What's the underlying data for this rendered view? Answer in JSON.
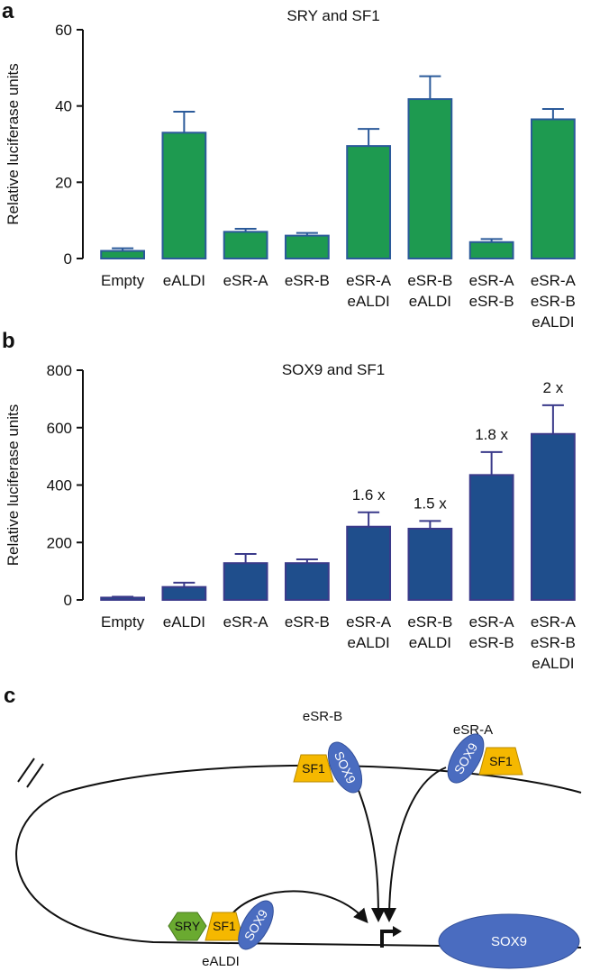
{
  "chart_data": [
    {
      "type": "bar",
      "panel": "a",
      "title": "SRY and SF1",
      "ylabel": "Relative luciferase units",
      "categories": [
        "Empty",
        "eALDI",
        "eSR-A",
        "eSR-B",
        "eSR-A\neALDI",
        "eSR-B\neALDI",
        "eSR-A\neSR-B",
        "eSR-A\neSR-B\neALDI"
      ],
      "values": [
        2,
        33,
        7,
        6,
        29.5,
        41.8,
        4.3,
        36.5
      ],
      "errors": [
        0.7,
        5.5,
        0.8,
        0.7,
        4.5,
        6,
        0.8,
        2.7
      ],
      "color": "#1e9a50",
      "edge_color": "#2b5a9a",
      "error_color": "#2b5a9a",
      "ylim": [
        0,
        60
      ],
      "yticks": [
        0,
        20,
        40,
        60
      ]
    },
    {
      "type": "bar",
      "panel": "b",
      "title": "SOX9 and SF1",
      "ylabel": "Relative luciferase units",
      "categories": [
        "Empty",
        "eALDI",
        "eSR-A",
        "eSR-B",
        "eSR-A\neALDI",
        "eSR-B\neALDI",
        "eSR-A\neSR-B",
        "eSR-A\neSR-B\neALDI"
      ],
      "values": [
        8,
        45,
        128,
        128,
        255,
        248,
        435,
        578
      ],
      "errors": [
        3,
        15,
        32,
        13,
        50,
        27,
        80,
        100
      ],
      "annotations": [
        null,
        null,
        null,
        null,
        "1.6 x",
        "1.5 x",
        "1.8 x",
        "2 x"
      ],
      "color": "#1f4e8c",
      "edge_color": "#3a3a8a",
      "error_color": "#3a3a8a",
      "ylim": [
        0,
        800
      ],
      "yticks": [
        0,
        200,
        400,
        600,
        800
      ]
    }
  ],
  "diagram": {
    "panel": "c",
    "esr_b": {
      "label": "eSR-B",
      "sf1": "SF1",
      "sox9": "SOX9"
    },
    "esr_a": {
      "label": "eSR-A",
      "sf1": "SF1",
      "sox9": "SOX9"
    },
    "ealdi": {
      "label": "eALDI",
      "sry": "SRY",
      "sf1": "SF1",
      "sox9": "SOX9"
    },
    "gene": "SOX9"
  }
}
